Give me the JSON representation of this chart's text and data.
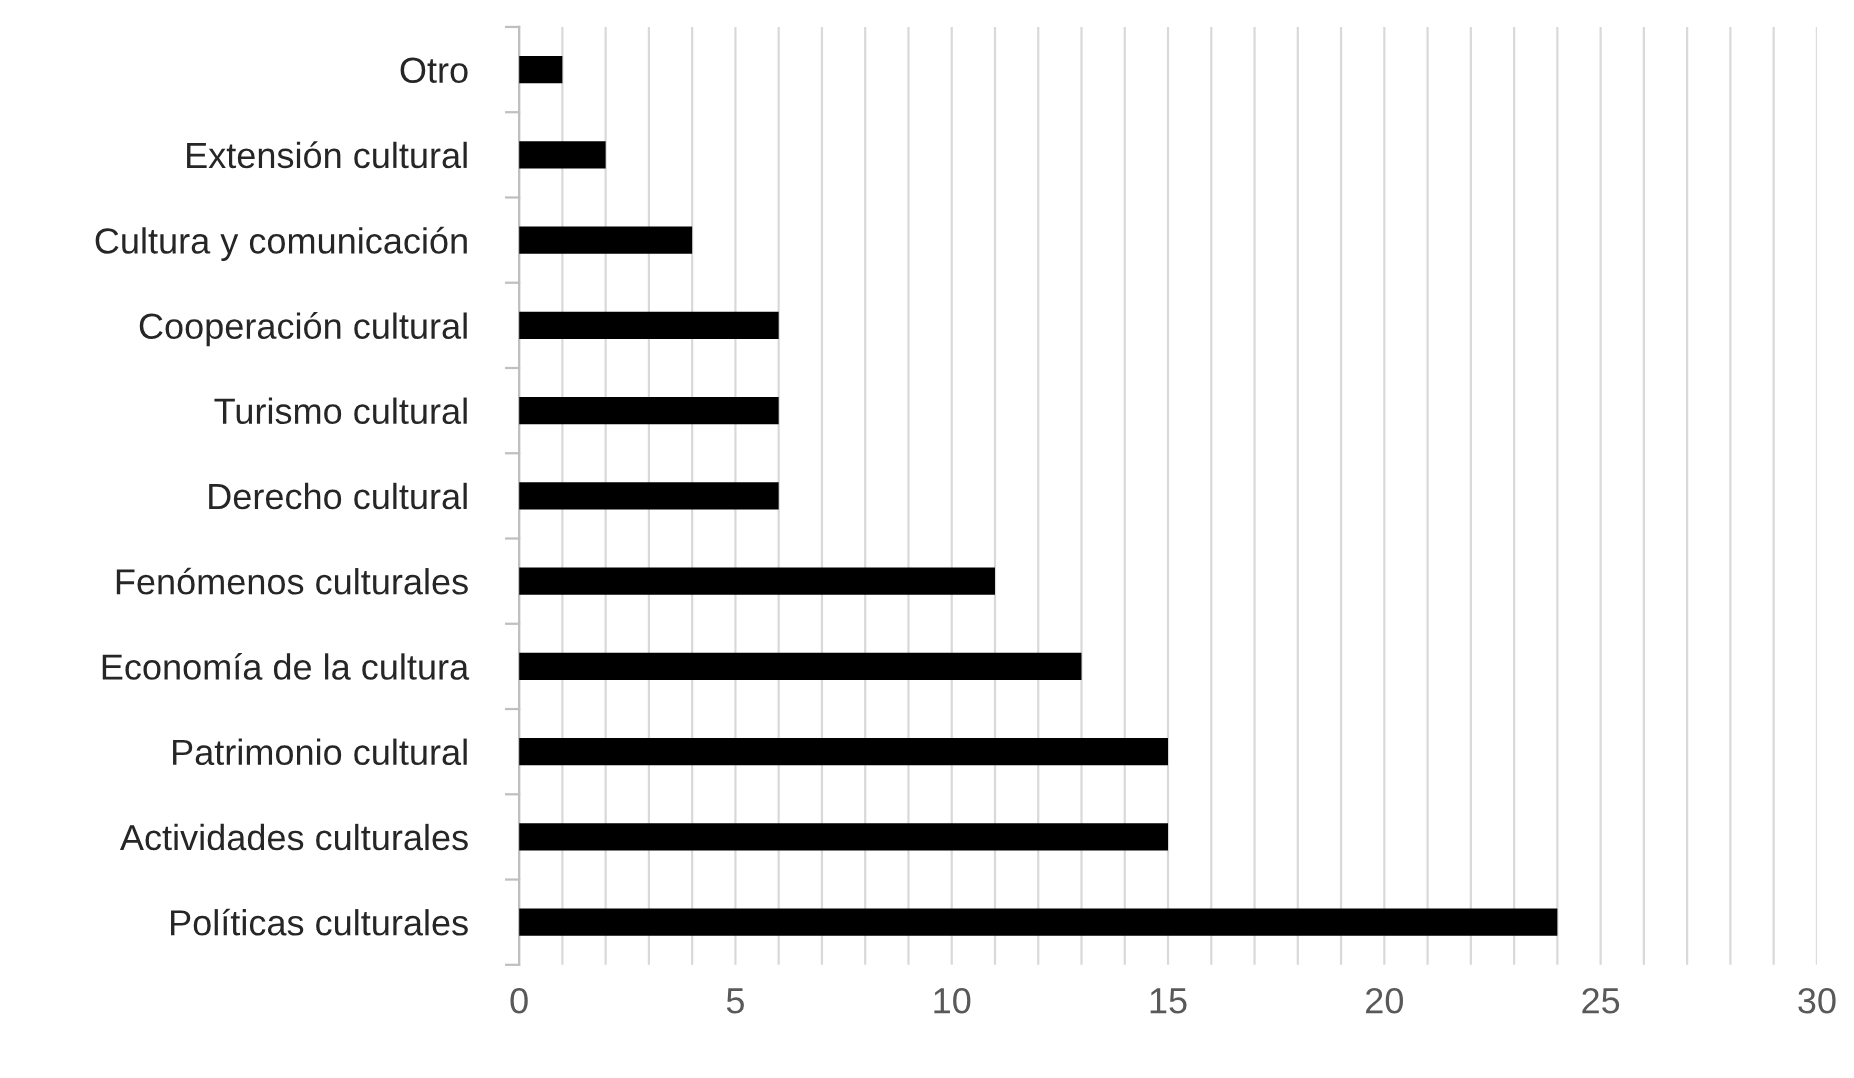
{
  "chart_data": {
    "type": "bar",
    "orientation": "horizontal",
    "categories": [
      "Otro",
      "Extensión cultural",
      "Cultura y comunicación",
      "Cooperación cultural",
      "Turismo cultural",
      "Derecho cultural",
      "Fenómenos culturales",
      "Economía de la cultura",
      "Patrimonio cultural",
      "Actividades culturales",
      "Políticas culturales"
    ],
    "values": [
      1,
      2,
      4,
      6,
      6,
      6,
      11,
      13,
      15,
      15,
      24
    ],
    "color": "#000000",
    "xlim": [
      0,
      30
    ],
    "xticks": [
      0,
      {
        "value": 1,
        "label": null
      },
      {
        "value": 2,
        "label": null
      },
      {
        "value": 3,
        "label": null
      },
      {
        "value": 4,
        "label": null
      },
      5,
      {
        "value": 6,
        "label": null
      },
      {
        "value": 7,
        "label": null
      },
      {
        "value": 8,
        "label": null
      },
      {
        "value": 9,
        "label": null
      },
      10,
      {
        "value": 11,
        "label": null
      },
      {
        "value": 12,
        "label": null
      },
      {
        "value": 13,
        "label": null
      },
      {
        "value": 14,
        "label": null
      },
      15,
      {
        "value": 16,
        "label": null
      },
      {
        "value": 17,
        "label": null
      },
      {
        "value": 18,
        "label": null
      },
      {
        "value": 19,
        "label": null
      },
      20,
      {
        "value": 21,
        "label": null
      },
      {
        "value": 22,
        "label": null
      },
      {
        "value": 23,
        "label": null
      },
      {
        "value": 24,
        "label": null
      },
      25,
      {
        "value": 26,
        "label": null
      },
      {
        "value": 27,
        "label": null
      },
      {
        "value": 28,
        "label": null
      },
      {
        "value": 29,
        "label": null
      },
      30
    ],
    "grid": "x"
  }
}
